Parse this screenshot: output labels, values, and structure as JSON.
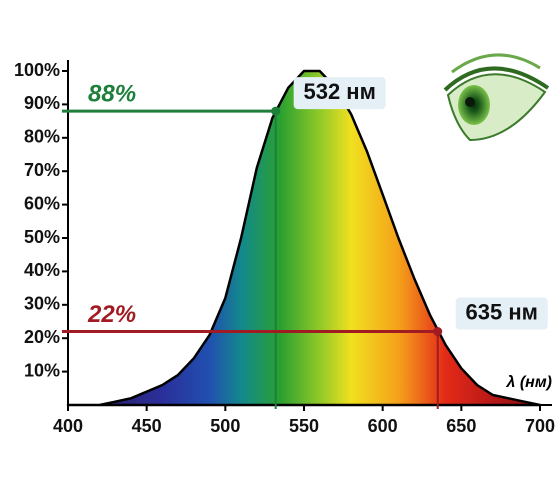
{
  "chart_data": {
    "type": "area",
    "color": "#000000",
    "x": [
      400,
      410,
      420,
      430,
      440,
      450,
      460,
      470,
      480,
      490,
      500,
      510,
      520,
      530,
      540,
      550,
      560,
      570,
      580,
      590,
      600,
      610,
      620,
      630,
      640,
      650,
      660,
      670,
      680,
      690,
      700
    ],
    "values": [
      0,
      0,
      0,
      1,
      2,
      4,
      6,
      9,
      14,
      21,
      32,
      50,
      71,
      86,
      95,
      100,
      100,
      95,
      87,
      76,
      63,
      50,
      38,
      27,
      18,
      11,
      6,
      3,
      2,
      1,
      0
    ],
    "xlim": [
      400,
      700
    ],
    "ylim": [
      0,
      100
    ],
    "xticks": [
      400,
      450,
      500,
      550,
      600,
      650,
      700
    ],
    "yticks": [
      {
        "value": 10,
        "label": "10%"
      },
      {
        "value": 20,
        "label": "20%"
      },
      {
        "value": 30,
        "label": "30%"
      },
      {
        "value": 40,
        "label": "40%"
      },
      {
        "value": 50,
        "label": "50%"
      },
      {
        "value": 60,
        "label": "60%"
      },
      {
        "value": 70,
        "label": "70%"
      },
      {
        "value": 80,
        "label": "80%"
      },
      {
        "value": 90,
        "label": "90%"
      },
      {
        "value": 100,
        "label": "100%"
      }
    ],
    "xlabel": "λ (нм)",
    "annotations": [
      {
        "x": 532,
        "y": 88,
        "x_label": "532 нм",
        "y_label": "88%",
        "color": "#1e7f3a"
      },
      {
        "x": 635,
        "y": 22,
        "x_label": "635 нм",
        "y_label": "22%",
        "color": "#a01c22"
      }
    ]
  }
}
